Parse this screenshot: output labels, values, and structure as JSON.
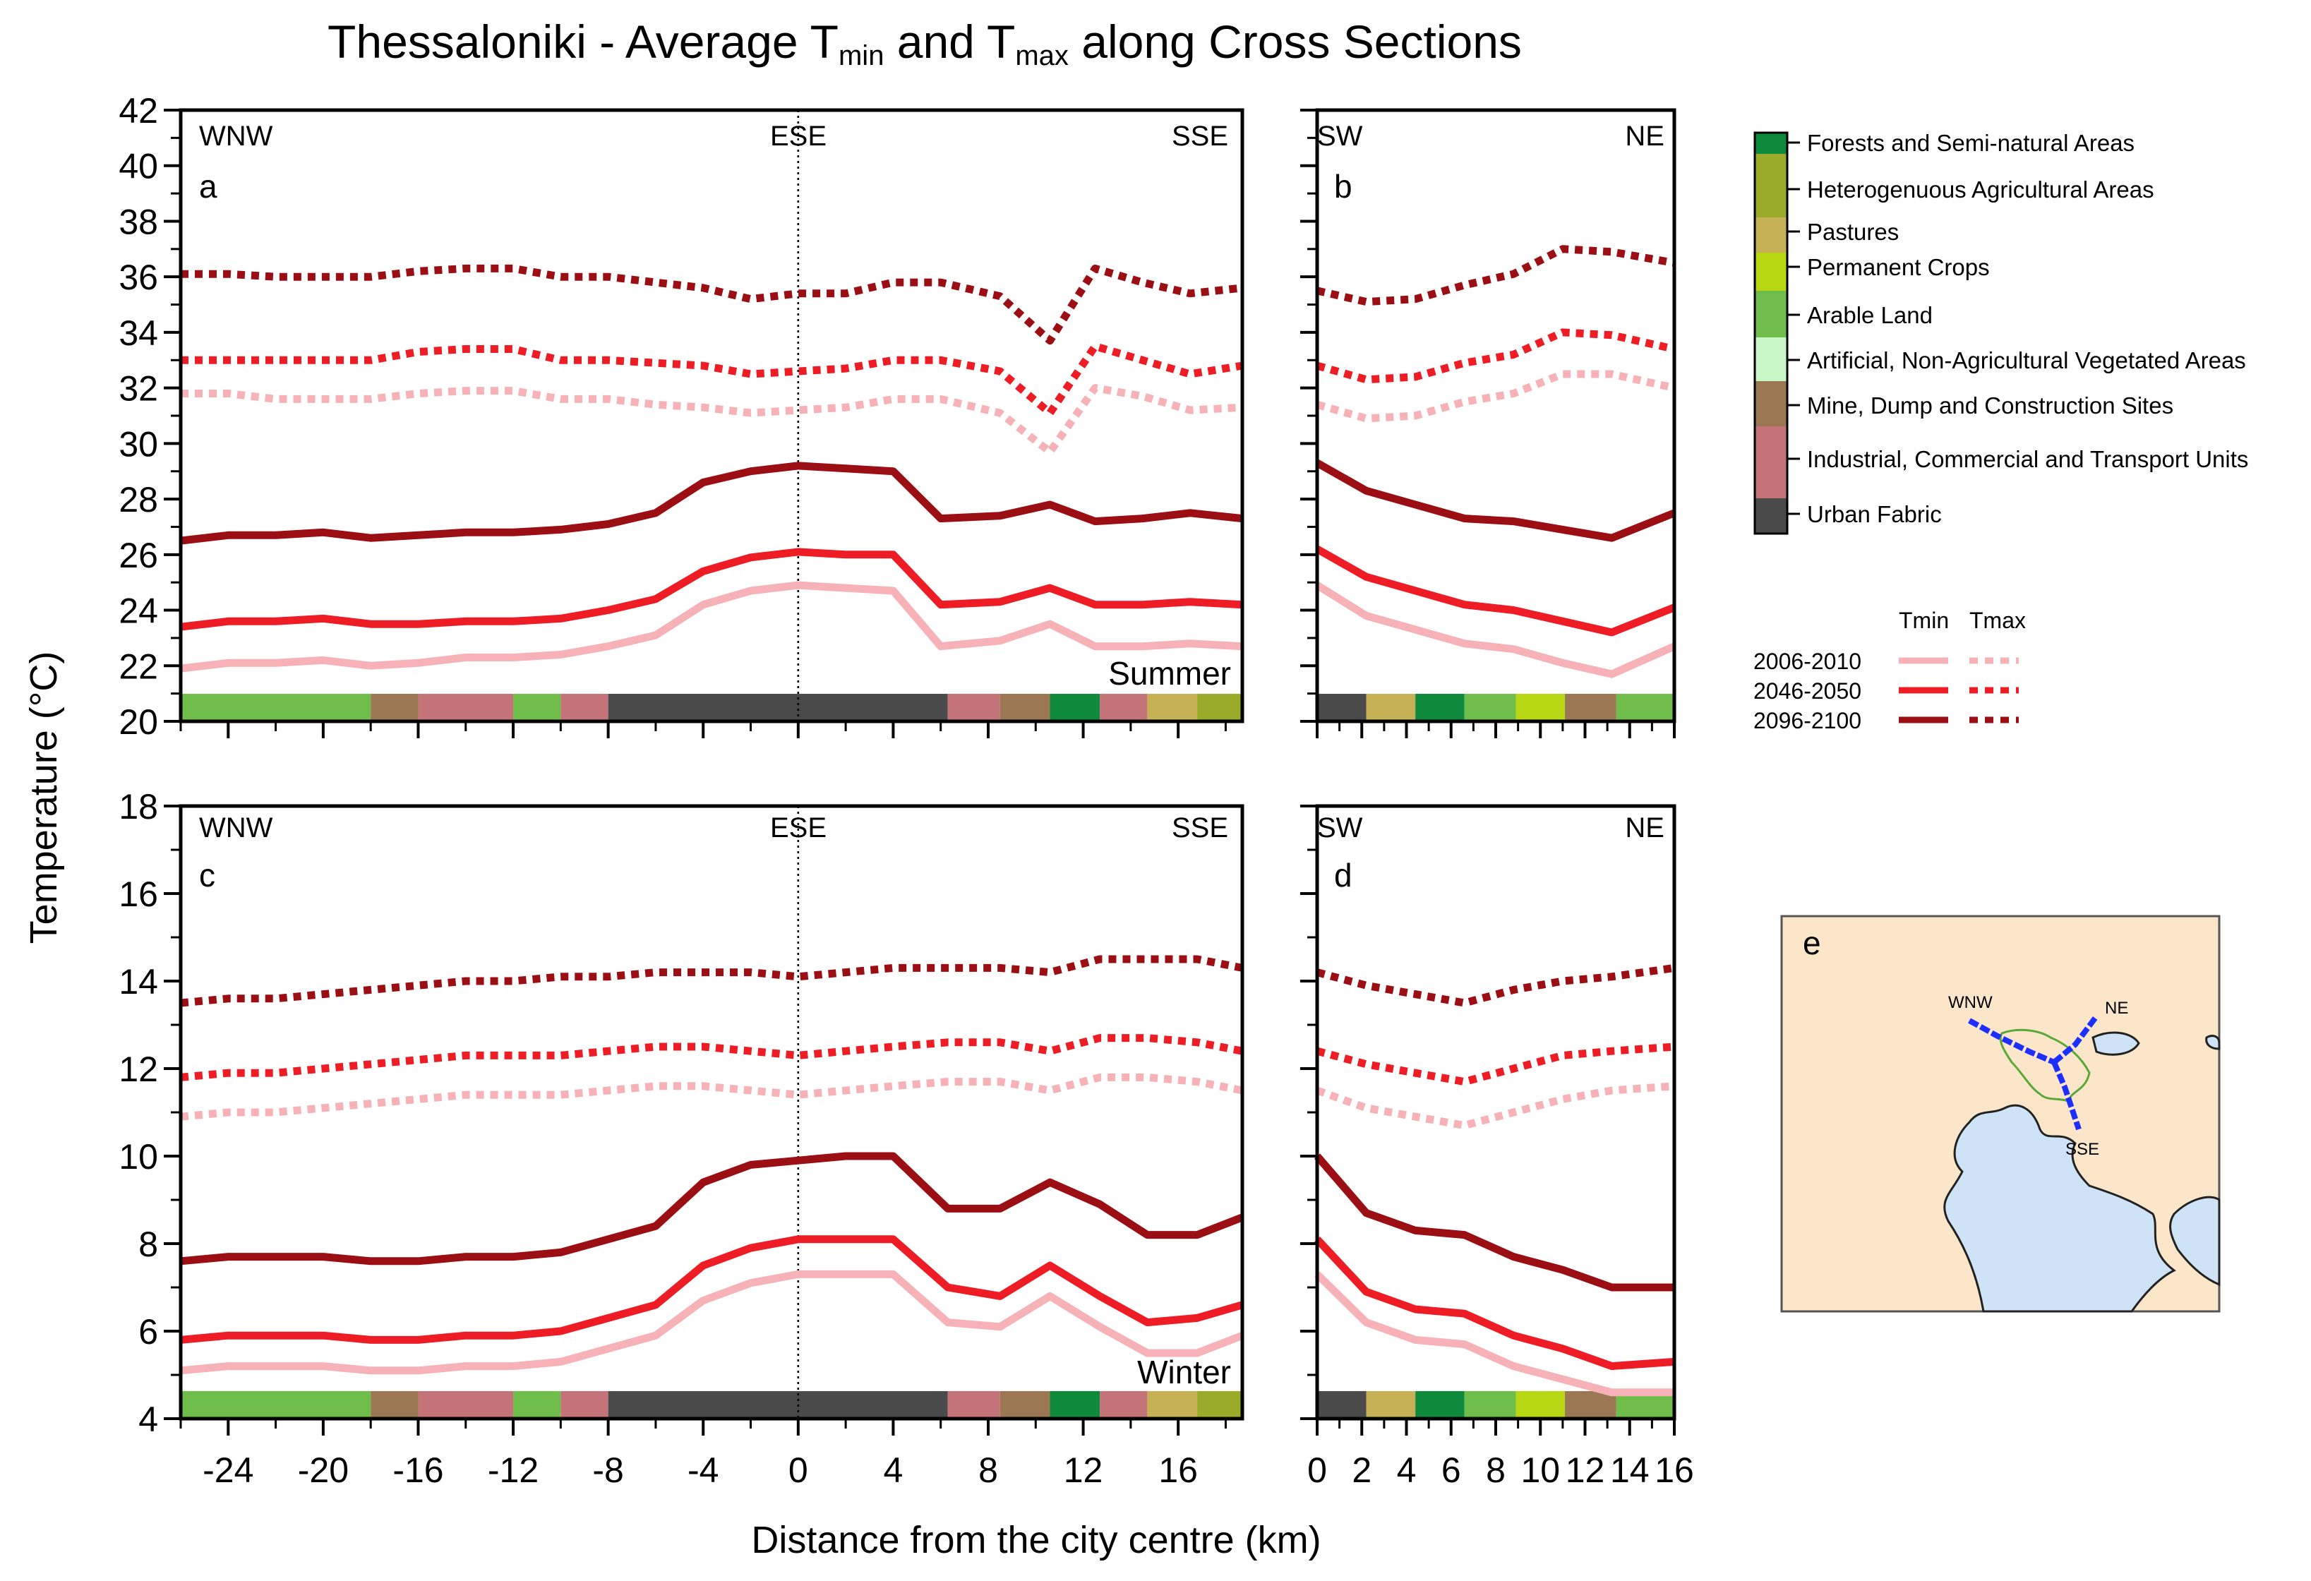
{
  "colors": {
    "period_2006": "#f7b2b7",
    "period_2046": "#ee1c25",
    "period_2096": "#9b0f14",
    "legend_lc": [
      "#0f8a3c",
      "#9aab2a",
      "#c7b157",
      "#b7d613",
      "#6fbe4b",
      "#c8f7c8",
      "#9b7753",
      "#c47478",
      "#4a4a4a"
    ],
    "land_sea": "#cfe3f7",
    "land": "#fbe6c9",
    "route": "#1d2fff"
  },
  "title": {
    "prefix": "Thessaloniki -  Average T",
    "min_sub": "min",
    "and": " and T",
    "max_sub": "max",
    "suffix": " along Cross Sections"
  },
  "ylabel": "Temperature (°C)",
  "xlabel": "Distance from the city centre (km)",
  "legend_landcover": [
    {
      "label": "Forests and Semi-natural Areas",
      "color": "#0f8a3c"
    },
    {
      "label": "Heterogenuous Agricultural Areas",
      "color": "#9aab2a"
    },
    {
      "label": "Pastures",
      "color": "#c7b157"
    },
    {
      "label": "Permanent Crops",
      "color": "#b7d613"
    },
    {
      "label": "Arable Land",
      "color": "#6fbe4b"
    },
    {
      "label": "Artificial, Non-Agricultural Vegetated Areas",
      "color": "#c8f7c8"
    },
    {
      "label": "Mine, Dump and Construction Sites",
      "color": "#9b7753"
    },
    {
      "label": "Industrial, Commercial and Transport Units",
      "color": "#c47478"
    },
    {
      "label": "Urban Fabric",
      "color": "#4a4a4a"
    }
  ],
  "legend_series": {
    "tmin_label": "Tmin",
    "tmax_label": "Tmax",
    "periods": [
      "2006-2010",
      "2046-2050",
      "2096-2100"
    ]
  },
  "chart_data": [
    {
      "type": "line",
      "panel": "a",
      "season": "Summer",
      "left_direction": "WNW",
      "mid_direction": "ESE",
      "right_direction": "SSE",
      "xlim": [
        -26,
        18.7
      ],
      "ylim": [
        20,
        42
      ],
      "xticks": [
        -24,
        -20,
        -16,
        -12,
        -8,
        -4,
        0,
        4,
        8,
        12,
        16
      ],
      "yticks": [
        20,
        22,
        24,
        26,
        28,
        30,
        32,
        34,
        36,
        38,
        40,
        42
      ],
      "x": [
        -26,
        -24,
        -22,
        -20,
        -18,
        -16,
        -14,
        -12,
        -10,
        -8,
        -6,
        -4,
        -2,
        0,
        2,
        4,
        6,
        8.5,
        10.6,
        12.5,
        14.5,
        16.5,
        18.7
      ],
      "series": [
        {
          "name": "2006-2010 Tmin",
          "period": "2006-2010",
          "kind": "Tmin",
          "values": [
            21.9,
            22.1,
            22.1,
            22.2,
            22.0,
            22.1,
            22.3,
            22.3,
            22.4,
            22.7,
            23.1,
            24.2,
            24.7,
            24.9,
            24.8,
            24.7,
            22.7,
            22.9,
            23.5,
            22.7,
            22.7,
            22.8,
            22.7
          ]
        },
        {
          "name": "2046-2050 Tmin",
          "period": "2046-2050",
          "kind": "Tmin",
          "values": [
            23.4,
            23.6,
            23.6,
            23.7,
            23.5,
            23.5,
            23.6,
            23.6,
            23.7,
            24.0,
            24.4,
            25.4,
            25.9,
            26.1,
            26.0,
            26.0,
            24.2,
            24.3,
            24.8,
            24.2,
            24.2,
            24.3,
            24.2
          ]
        },
        {
          "name": "2096-2100 Tmin",
          "period": "2096-2100",
          "kind": "Tmin",
          "values": [
            26.5,
            26.7,
            26.7,
            26.8,
            26.6,
            26.7,
            26.8,
            26.8,
            26.9,
            27.1,
            27.5,
            28.6,
            29.0,
            29.2,
            29.1,
            29.0,
            27.3,
            27.4,
            27.8,
            27.2,
            27.3,
            27.5,
            27.3
          ]
        },
        {
          "name": "2006-2010 Tmax",
          "period": "2006-2010",
          "kind": "Tmax",
          "values": [
            31.8,
            31.8,
            31.6,
            31.6,
            31.6,
            31.8,
            31.9,
            31.9,
            31.6,
            31.6,
            31.4,
            31.3,
            31.1,
            31.2,
            31.3,
            31.6,
            31.6,
            31.1,
            29.7,
            32.0,
            31.7,
            31.2,
            31.3
          ]
        },
        {
          "name": "2046-2050 Tmax",
          "period": "2046-2050",
          "kind": "Tmax",
          "values": [
            33.0,
            33.0,
            33.0,
            33.0,
            33.0,
            33.3,
            33.4,
            33.4,
            33.0,
            33.0,
            32.9,
            32.8,
            32.5,
            32.6,
            32.7,
            33.0,
            33.0,
            32.6,
            31.1,
            33.5,
            33.0,
            32.5,
            32.8
          ]
        },
        {
          "name": "2096-2100 Tmax",
          "period": "2096-2100",
          "kind": "Tmax",
          "values": [
            36.1,
            36.1,
            36.0,
            36.0,
            36.0,
            36.2,
            36.3,
            36.3,
            36.0,
            36.0,
            35.8,
            35.6,
            35.2,
            35.4,
            35.4,
            35.8,
            35.8,
            35.3,
            33.7,
            36.3,
            35.8,
            35.4,
            35.6
          ]
        }
      ],
      "land_cover_strip": [
        "Arable Land",
        "Mine, Dump and Construction Sites",
        "Industrial, Commercial and Transport Units",
        "Arable Land",
        "Industrial, Commercial and Transport Units",
        "Urban Fabric",
        "Industrial, Commercial and Transport Units",
        "Mine, Dump and Construction Sites",
        "Forests and Semi-natural Areas",
        "Industrial, Commercial and Transport Units",
        "Pastures",
        "Heterogenuous Agricultural Areas"
      ],
      "land_cover_strip_x": [
        -26,
        -18,
        -16,
        -12,
        -10,
        -8,
        6.3,
        8.5,
        10.6,
        12.7,
        14.7,
        16.8,
        18.7
      ]
    },
    {
      "type": "line",
      "panel": "b",
      "season": "",
      "left_direction": "SW",
      "right_direction": "NE",
      "xlim": [
        0,
        16
      ],
      "ylim": [
        20,
        42
      ],
      "xticks": [
        0,
        2,
        4,
        6,
        8,
        10,
        12,
        14,
        16
      ],
      "x": [
        0,
        2.2,
        4.4,
        6.6,
        8.8,
        11,
        13.2,
        16
      ],
      "series": [
        {
          "name": "2006-2010 Tmin",
          "period": "2006-2010",
          "kind": "Tmin",
          "values": [
            24.9,
            23.8,
            23.3,
            22.8,
            22.6,
            22.1,
            21.7,
            22.7
          ]
        },
        {
          "name": "2046-2050 Tmin",
          "period": "2046-2050",
          "kind": "Tmin",
          "values": [
            26.2,
            25.2,
            24.7,
            24.2,
            24.0,
            23.6,
            23.2,
            24.1
          ]
        },
        {
          "name": "2096-2100 Tmin",
          "period": "2096-2100",
          "kind": "Tmin",
          "values": [
            29.3,
            28.3,
            27.8,
            27.3,
            27.2,
            26.9,
            26.6,
            27.5
          ]
        },
        {
          "name": "2006-2010 Tmax",
          "period": "2006-2010",
          "kind": "Tmax",
          "values": [
            31.4,
            30.9,
            31.0,
            31.5,
            31.8,
            32.5,
            32.5,
            32.0
          ]
        },
        {
          "name": "2046-2050 Tmax",
          "period": "2046-2050",
          "kind": "Tmax",
          "values": [
            32.8,
            32.3,
            32.4,
            32.9,
            33.2,
            34.0,
            33.9,
            33.4
          ]
        },
        {
          "name": "2096-2100 Tmax",
          "period": "2096-2100",
          "kind": "Tmax",
          "values": [
            35.5,
            35.1,
            35.2,
            35.7,
            36.1,
            37.0,
            36.9,
            36.5
          ]
        }
      ],
      "land_cover_strip": [
        "Urban Fabric",
        "Pastures",
        "Forests and Semi-natural Areas",
        "Arable Land",
        "Permanent Crops",
        "Mine, Dump and Construction Sites",
        "Arable Land"
      ],
      "land_cover_strip_x": [
        0,
        2.2,
        4.4,
        6.6,
        8.9,
        11.1,
        13.4,
        16
      ]
    },
    {
      "type": "line",
      "panel": "c",
      "season": "Winter",
      "left_direction": "WNW",
      "mid_direction": "ESE",
      "right_direction": "SSE",
      "xlim": [
        -26,
        18.7
      ],
      "ylim": [
        4,
        18
      ],
      "xticks": [
        -24,
        -20,
        -16,
        -12,
        -8,
        -4,
        0,
        4,
        8,
        12,
        16
      ],
      "yticks": [
        4,
        6,
        8,
        10,
        12,
        14,
        16,
        18
      ],
      "x": [
        -26,
        -24,
        -22,
        -20,
        -18,
        -16,
        -14,
        -12,
        -10,
        -8,
        -6,
        -4,
        -2,
        0,
        2,
        4,
        6.3,
        8.5,
        10.6,
        12.7,
        14.7,
        16.8,
        18.7
      ],
      "series": [
        {
          "name": "2006-2010 Tmin",
          "period": "2006-2010",
          "kind": "Tmin",
          "values": [
            5.1,
            5.2,
            5.2,
            5.2,
            5.1,
            5.1,
            5.2,
            5.2,
            5.3,
            5.6,
            5.9,
            6.7,
            7.1,
            7.3,
            7.3,
            7.3,
            6.2,
            6.1,
            6.8,
            6.1,
            5.5,
            5.5,
            5.9
          ]
        },
        {
          "name": "2046-2050 Tmin",
          "period": "2046-2050",
          "kind": "Tmin",
          "values": [
            5.8,
            5.9,
            5.9,
            5.9,
            5.8,
            5.8,
            5.9,
            5.9,
            6.0,
            6.3,
            6.6,
            7.5,
            7.9,
            8.1,
            8.1,
            8.1,
            7.0,
            6.8,
            7.5,
            6.8,
            6.2,
            6.3,
            6.6
          ]
        },
        {
          "name": "2096-2100 Tmin",
          "period": "2096-2100",
          "kind": "Tmin",
          "values": [
            7.6,
            7.7,
            7.7,
            7.7,
            7.6,
            7.6,
            7.7,
            7.7,
            7.8,
            8.1,
            8.4,
            9.4,
            9.8,
            9.9,
            10.0,
            10.0,
            8.8,
            8.8,
            9.4,
            8.9,
            8.2,
            8.2,
            8.6
          ]
        },
        {
          "name": "2006-2010 Tmax",
          "period": "2006-2010",
          "kind": "Tmax",
          "values": [
            10.9,
            11.0,
            11.0,
            11.1,
            11.2,
            11.3,
            11.4,
            11.4,
            11.4,
            11.5,
            11.6,
            11.6,
            11.5,
            11.4,
            11.5,
            11.6,
            11.7,
            11.7,
            11.5,
            11.8,
            11.8,
            11.7,
            11.5
          ]
        },
        {
          "name": "2046-2050 Tmax",
          "period": "2046-2050",
          "kind": "Tmax",
          "values": [
            11.8,
            11.9,
            11.9,
            12.0,
            12.1,
            12.2,
            12.3,
            12.3,
            12.3,
            12.4,
            12.5,
            12.5,
            12.4,
            12.3,
            12.4,
            12.5,
            12.6,
            12.6,
            12.4,
            12.7,
            12.7,
            12.6,
            12.4
          ]
        },
        {
          "name": "2096-2100 Tmax",
          "period": "2096-2100",
          "kind": "Tmax",
          "values": [
            13.5,
            13.6,
            13.6,
            13.7,
            13.8,
            13.9,
            14.0,
            14.0,
            14.1,
            14.1,
            14.2,
            14.2,
            14.2,
            14.1,
            14.2,
            14.3,
            14.3,
            14.3,
            14.2,
            14.5,
            14.5,
            14.5,
            14.3
          ]
        }
      ],
      "land_cover_strip": [
        "Arable Land",
        "Mine, Dump and Construction Sites",
        "Industrial, Commercial and Transport Units",
        "Arable Land",
        "Industrial, Commercial and Transport Units",
        "Urban Fabric",
        "Industrial, Commercial and Transport Units",
        "Mine, Dump and Construction Sites",
        "Forests and Semi-natural Areas",
        "Industrial, Commercial and Transport Units",
        "Pastures",
        "Heterogenuous Agricultural Areas"
      ],
      "land_cover_strip_x": [
        -26,
        -18,
        -16,
        -12,
        -10,
        -8,
        6.3,
        8.5,
        10.6,
        12.7,
        14.7,
        16.8,
        18.7
      ]
    },
    {
      "type": "line",
      "panel": "d",
      "season": "",
      "left_direction": "SW",
      "right_direction": "NE",
      "xlim": [
        0,
        16
      ],
      "ylim": [
        4,
        18
      ],
      "xticks": [
        0,
        2,
        4,
        6,
        8,
        10,
        12,
        14,
        16
      ],
      "x": [
        0,
        2.2,
        4.4,
        6.6,
        8.8,
        11,
        13.2,
        16
      ],
      "series": [
        {
          "name": "2006-2010 Tmin",
          "period": "2006-2010",
          "kind": "Tmin",
          "values": [
            7.3,
            6.2,
            5.8,
            5.7,
            5.2,
            4.9,
            4.6,
            4.6
          ]
        },
        {
          "name": "2046-2050 Tmin",
          "period": "2046-2050",
          "kind": "Tmin",
          "values": [
            8.1,
            6.9,
            6.5,
            6.4,
            5.9,
            5.6,
            5.2,
            5.3
          ]
        },
        {
          "name": "2096-2100 Tmin",
          "period": "2096-2100",
          "kind": "Tmin",
          "values": [
            10.0,
            8.7,
            8.3,
            8.2,
            7.7,
            7.4,
            7.0,
            7.0
          ]
        },
        {
          "name": "2006-2010 Tmax",
          "period": "2006-2010",
          "kind": "Tmax",
          "values": [
            11.5,
            11.1,
            10.9,
            10.7,
            11.0,
            11.3,
            11.5,
            11.6
          ]
        },
        {
          "name": "2046-2050 Tmax",
          "period": "2046-2050",
          "kind": "Tmax",
          "values": [
            12.4,
            12.1,
            11.9,
            11.7,
            12.0,
            12.3,
            12.4,
            12.5
          ]
        },
        {
          "name": "2096-2100 Tmax",
          "period": "2096-2100",
          "kind": "Tmax",
          "values": [
            14.2,
            13.9,
            13.7,
            13.5,
            13.8,
            14.0,
            14.1,
            14.3
          ]
        }
      ],
      "land_cover_strip": [
        "Urban Fabric",
        "Pastures",
        "Forests and Semi-natural Areas",
        "Arable Land",
        "Permanent Crops",
        "Mine, Dump and Construction Sites",
        "Arable Land"
      ],
      "land_cover_strip_x": [
        0,
        2.2,
        4.4,
        6.6,
        8.9,
        11.1,
        13.4,
        16
      ]
    }
  ],
  "map_inset": {
    "panel": "e",
    "labels": {
      "wnw": "WNW",
      "ne": "NE",
      "sse": "SSE"
    }
  }
}
